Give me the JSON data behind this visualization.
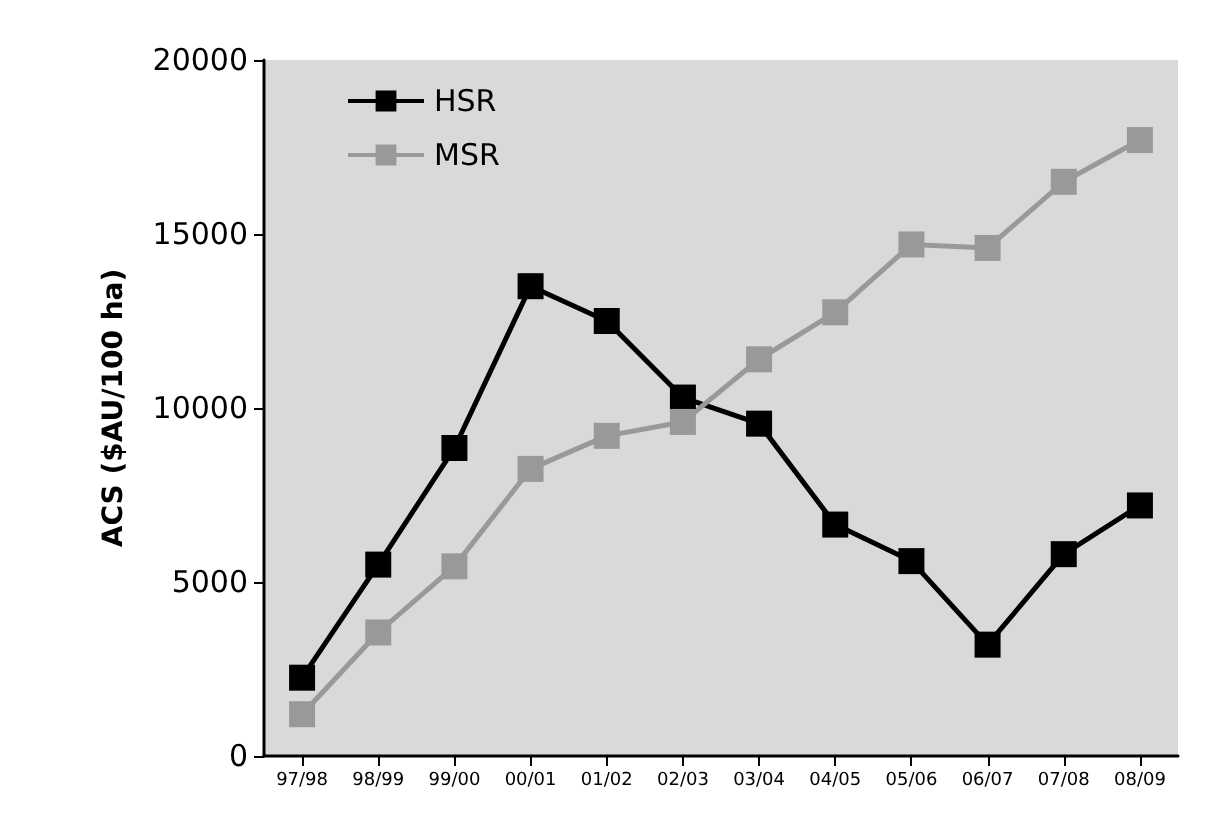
{
  "chart_data": {
    "type": "line",
    "ylabel": "ACS ($AU/100 ha)",
    "categories": [
      "97/98",
      "98/99",
      "99/00",
      "00/01",
      "01/02",
      "02/03",
      "03/04",
      "04/05",
      "05/06",
      "06/07",
      "07/08",
      "08/09"
    ],
    "series": [
      {
        "name": "HSR",
        "color": "#000000",
        "values": [
          2250,
          5500,
          8850,
          13500,
          12500,
          10300,
          9550,
          6650,
          5600,
          3200,
          5800,
          7200
        ]
      },
      {
        "name": "MSR",
        "color": "#999999",
        "values": [
          1200,
          3550,
          5450,
          8250,
          9200,
          9600,
          11400,
          12750,
          14700,
          14600,
          16500,
          17700
        ]
      }
    ],
    "ylim": [
      0,
      20000
    ],
    "yticks": [
      0,
      5000,
      10000,
      15000,
      20000
    ],
    "grid": false,
    "legend": "top left",
    "marker": "square",
    "line_style": "solid"
  }
}
